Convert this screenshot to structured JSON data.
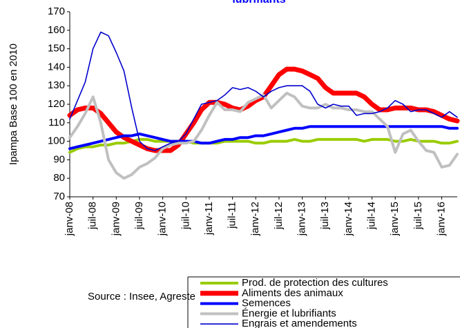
{
  "chart_data": {
    "type": "line",
    "title": "lubrifiants",
    "y_label": "Ipampa Base 100 en 2010",
    "source": "Source : Insee, Agreste",
    "categories": [
      "janv-08",
      null,
      null,
      "juil-08",
      null,
      null,
      "janv-09",
      null,
      null,
      "juil-09",
      null,
      null,
      "janv-10",
      null,
      null,
      "juil-10",
      null,
      null,
      "janv-11",
      null,
      null,
      "juil-11",
      null,
      null,
      "janv-12",
      null,
      null,
      "juil-12",
      null,
      null,
      "janv-13",
      null,
      null,
      "juil-13",
      null,
      null,
      "janv-14",
      null,
      null,
      "juil-14",
      null,
      null,
      "janv-15",
      null,
      null,
      "juil-15",
      null,
      null,
      "janv-16",
      null,
      null
    ],
    "ylim": [
      70,
      170
    ],
    "yticks": [
      70,
      80,
      90,
      100,
      110,
      120,
      130,
      140,
      150,
      160,
      170
    ],
    "grid": false,
    "legend": "bottom-right",
    "series": [
      {
        "name": "Prod. de protection des cultures",
        "color": "#99cc00",
        "width": 4,
        "values": [
          94,
          96,
          97,
          97,
          98,
          98,
          99,
          99,
          100,
          101,
          101,
          100,
          100,
          100,
          100,
          100,
          99,
          99,
          99,
          99,
          100,
          100,
          100,
          100,
          99,
          99,
          100,
          100,
          100,
          101,
          100,
          100,
          101,
          101,
          101,
          101,
          101,
          101,
          100,
          101,
          101,
          101,
          100,
          100,
          101,
          100,
          100,
          100,
          99,
          99,
          100
        ]
      },
      {
        "name": "Aliments des animaux",
        "color": "#ff0000",
        "width": 7,
        "values": [
          114,
          117,
          118,
          118,
          115,
          110,
          105,
          102,
          100,
          98,
          96,
          95,
          95,
          95,
          98,
          104,
          110,
          117,
          121,
          121,
          120,
          118,
          117,
          119,
          122,
          124,
          130,
          136,
          139,
          139,
          138,
          136,
          134,
          129,
          126,
          126,
          126,
          126,
          124,
          120,
          117,
          117,
          118,
          118,
          118,
          117,
          117,
          116,
          114,
          112,
          111
        ]
      },
      {
        "name": "Semences",
        "color": "#0000ff",
        "width": 4,
        "values": [
          96,
          97,
          98,
          99,
          100,
          101,
          102,
          103,
          103,
          104,
          103,
          102,
          101,
          100,
          100,
          100,
          100,
          99,
          99,
          100,
          101,
          101,
          102,
          102,
          103,
          103,
          104,
          105,
          106,
          107,
          107,
          108,
          108,
          108,
          108,
          108,
          108,
          108,
          108,
          108,
          108,
          108,
          108,
          108,
          108,
          108,
          108,
          108,
          108,
          107,
          107
        ]
      },
      {
        "name": "Énergie et lubrifiants",
        "color": "#c0c0c0",
        "width": 4,
        "values": [
          102,
          108,
          115,
          124,
          110,
          90,
          83,
          80,
          82,
          86,
          88,
          91,
          96,
          98,
          99,
          99,
          100,
          106,
          114,
          121,
          117,
          117,
          116,
          121,
          123,
          125,
          118,
          122,
          126,
          124,
          119,
          118,
          118,
          120,
          118,
          118,
          117,
          117,
          116,
          116,
          112,
          108,
          94,
          104,
          106,
          100,
          95,
          94,
          86,
          87,
          93
        ]
      },
      {
        "name": "Engrais et amendements",
        "color": "#0000cc",
        "width": 1.6,
        "values": [
          112,
          122,
          132,
          150,
          159,
          157,
          148,
          138,
          118,
          100,
          96,
          95,
          97,
          99,
          100,
          104,
          112,
          120,
          121,
          122,
          125,
          129,
          128,
          129,
          127,
          124,
          127,
          129,
          130,
          130,
          130,
          127,
          120,
          118,
          120,
          119,
          119,
          114,
          115,
          115,
          116,
          118,
          122,
          120,
          116,
          117,
          117,
          115,
          113,
          116,
          113
        ]
      }
    ]
  }
}
